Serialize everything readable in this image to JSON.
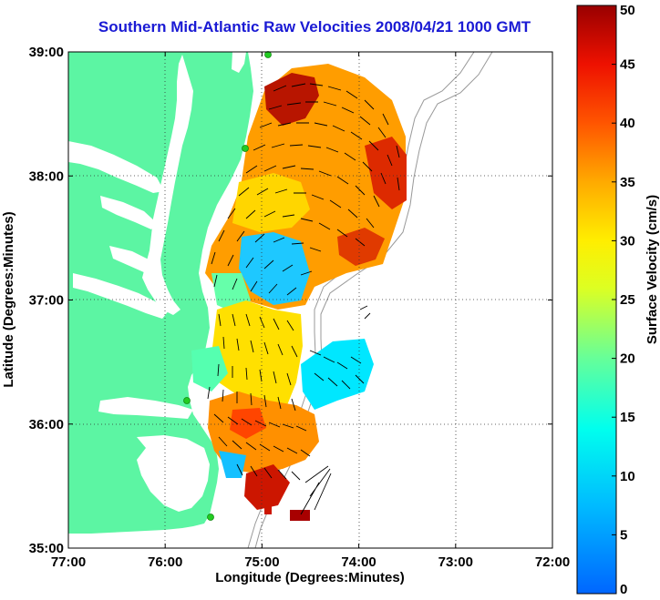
{
  "title": "Southern Mid-Atlantic Raw Velocities 2008/04/21 1000 GMT",
  "map": {
    "xlabel": "Longitude (Degrees:Minutes)",
    "ylabel": "Latitude (Degrees:Minutes)",
    "x_ticks": [
      "77:00",
      "76:00",
      "75:00",
      "74:00",
      "73:00",
      "72:00"
    ],
    "y_ticks": [
      "39:00",
      "38:00",
      "37:00",
      "36:00",
      "35:00"
    ],
    "lon_range": [
      -77,
      -72
    ],
    "lat_range": [
      35,
      39
    ],
    "land_color": "#5cf5a3",
    "station_color": "#22cc22"
  },
  "colorbar": {
    "label": "Surface Velocity (cm/s)",
    "ticks": [
      "50",
      "45",
      "40",
      "35",
      "30",
      "25",
      "20",
      "15",
      "10",
      "5",
      "0"
    ],
    "range": [
      0,
      50
    ]
  }
}
